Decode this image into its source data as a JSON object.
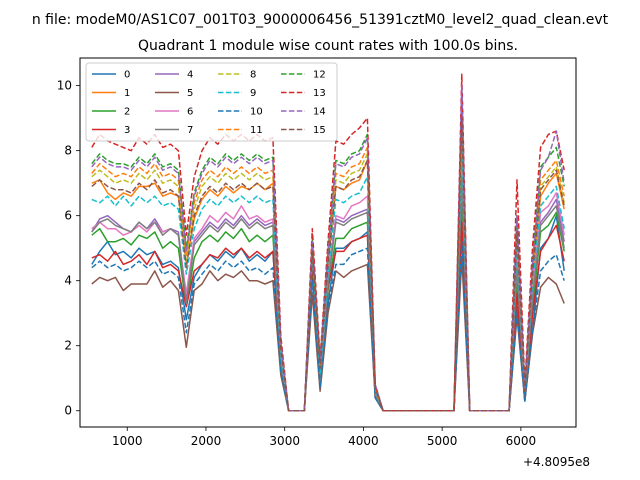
{
  "figure": {
    "suptitle": "n file: modeM0/AS1C07_001T03_9000006456_51391cztM0_level2_quad_clean.evt"
  },
  "chart_data": {
    "type": "line",
    "title": "Quadrant 1 module wise count rates with 100.0s bins.",
    "xlabel": "",
    "ylabel": "",
    "x_offset_label": "+4.8095e8",
    "xlim": [
      400,
      6700
    ],
    "ylim": [
      -0.5,
      10.85
    ],
    "xticks": [
      1000,
      2000,
      3000,
      4000,
      5000,
      6000
    ],
    "yticks": [
      0,
      2,
      4,
      6,
      8,
      10
    ],
    "grid": false,
    "legend_placement": "top-left",
    "x": [
      550,
      650,
      750,
      850,
      950,
      1050,
      1150,
      1250,
      1350,
      1450,
      1550,
      1650,
      1750,
      1850,
      1950,
      2050,
      2150,
      2250,
      2350,
      2450,
      2550,
      2650,
      2750,
      2850,
      2950,
      3050,
      3150,
      3250,
      3350,
      3450,
      3550,
      3650,
      3750,
      3850,
      3950,
      4050,
      4150,
      4250,
      4350,
      4450,
      4550,
      4650,
      4750,
      4850,
      4950,
      5050,
      5150,
      5250,
      5350,
      5450,
      5550,
      5650,
      5750,
      5850,
      5950,
      6050,
      6150,
      6250,
      6350,
      6450,
      6550
    ],
    "series": [
      {
        "name": "0",
        "color": "#1f77b4",
        "dash": "solid",
        "values": [
          4.5,
          4.9,
          5.2,
          4.8,
          4.9,
          4.7,
          5.0,
          4.8,
          4.9,
          4.5,
          4.6,
          4.4,
          2.8,
          4.1,
          4.5,
          4.8,
          4.6,
          4.9,
          4.7,
          5.0,
          4.6,
          4.8,
          4.6,
          4.9,
          1.3,
          0,
          0,
          0,
          4.3,
          0.7,
          3.3,
          5.0,
          5.0,
          5.2,
          5.3,
          5.5,
          0.4,
          0,
          0,
          0,
          0,
          0,
          0,
          0,
          0,
          0,
          0,
          5.6,
          0,
          0,
          0,
          0,
          0,
          0,
          3.2,
          0.3,
          2.5,
          5.0,
          5.3,
          6.0,
          4.3
        ]
      },
      {
        "name": "1",
        "color": "#ff7f0e",
        "dash": "solid",
        "values": [
          7.0,
          7.1,
          6.7,
          6.5,
          6.7,
          6.6,
          6.9,
          6.9,
          7.0,
          6.6,
          6.7,
          6.6,
          4.5,
          5.9,
          6.5,
          6.8,
          6.6,
          6.9,
          6.7,
          6.9,
          6.8,
          7.0,
          6.8,
          7.0,
          1.8,
          0,
          0,
          0,
          4.9,
          1.2,
          4.5,
          6.9,
          6.8,
          7.0,
          7.1,
          7.7,
          0.7,
          0,
          0,
          0,
          0,
          0,
          0,
          0,
          0,
          0,
          0,
          8.8,
          0,
          0,
          0,
          0,
          0,
          0,
          5.4,
          0.6,
          4.2,
          6.6,
          7.0,
          7.3,
          6.2
        ]
      },
      {
        "name": "2",
        "color": "#2ca02c",
        "dash": "solid",
        "values": [
          5.4,
          5.6,
          5.2,
          5.2,
          5.3,
          5.1,
          5.4,
          5.3,
          5.5,
          5.0,
          5.2,
          5.0,
          3.2,
          4.7,
          5.2,
          5.4,
          5.2,
          5.5,
          5.3,
          5.6,
          5.2,
          5.4,
          5.2,
          5.4,
          1.4,
          0,
          0,
          0,
          4.5,
          0.9,
          3.7,
          5.3,
          5.3,
          5.6,
          5.7,
          5.8,
          0.5,
          0,
          0,
          0,
          0,
          0,
          0,
          0,
          0,
          0,
          0,
          6.4,
          0,
          0,
          0,
          0,
          0,
          0,
          3.9,
          0.4,
          3.2,
          5.5,
          5.7,
          6.1,
          4.9
        ]
      },
      {
        "name": "3",
        "color": "#d62728",
        "dash": "solid",
        "values": [
          4.7,
          4.8,
          4.6,
          4.9,
          4.5,
          4.6,
          4.8,
          4.5,
          4.9,
          4.4,
          4.5,
          4.3,
          3.2,
          4.3,
          4.5,
          4.8,
          4.7,
          5.0,
          4.8,
          5.0,
          4.7,
          4.9,
          4.7,
          4.9,
          1.5,
          0,
          0,
          0,
          4.6,
          0.8,
          3.8,
          4.9,
          4.9,
          5.2,
          5.3,
          5.4,
          0.5,
          0,
          0,
          0,
          0,
          0,
          0,
          0,
          0,
          0,
          0,
          5.8,
          0,
          0,
          0,
          0,
          0,
          0,
          3.6,
          0.4,
          3.0,
          4.9,
          5.3,
          5.7,
          4.6
        ]
      },
      {
        "name": "4",
        "color": "#9467bd",
        "dash": "solid",
        "values": [
          5.5,
          5.9,
          6.0,
          5.8,
          5.6,
          5.5,
          5.8,
          5.6,
          5.9,
          5.5,
          5.6,
          5.5,
          3.4,
          5.2,
          5.5,
          5.8,
          5.6,
          5.9,
          5.7,
          6.0,
          5.7,
          5.9,
          5.7,
          5.8,
          1.5,
          0,
          0,
          0,
          5.0,
          1.0,
          4.0,
          5.9,
          5.8,
          6.0,
          6.1,
          6.2,
          0.6,
          0,
          0,
          0,
          0,
          0,
          0,
          0,
          0,
          0,
          0,
          7.5,
          0,
          0,
          0,
          0,
          0,
          0,
          4.5,
          0.5,
          3.6,
          5.8,
          6.1,
          6.5,
          5.2
        ]
      },
      {
        "name": "5",
        "color": "#8c564b",
        "dash": "solid",
        "values": [
          3.9,
          4.1,
          4.0,
          4.1,
          3.7,
          3.9,
          3.9,
          3.9,
          4.3,
          3.8,
          4.0,
          3.7,
          1.95,
          3.7,
          3.9,
          4.3,
          4.0,
          4.2,
          4.1,
          4.3,
          4.0,
          4.0,
          3.9,
          4.0,
          1.1,
          0,
          0,
          0,
          3.6,
          0.6,
          3.0,
          4.3,
          4.1,
          4.3,
          4.4,
          4.5,
          0.4,
          0,
          0,
          0,
          0,
          0,
          0,
          0,
          0,
          0,
          0,
          4.7,
          0,
          0,
          0,
          0,
          0,
          0,
          2.9,
          0.3,
          2.4,
          3.8,
          4.1,
          3.9,
          3.3
        ]
      },
      {
        "name": "6",
        "color": "#e377c2",
        "dash": "solid",
        "values": [
          5.6,
          5.8,
          5.6,
          5.6,
          5.4,
          5.5,
          5.7,
          5.5,
          5.8,
          5.5,
          5.6,
          5.4,
          3.6,
          5.3,
          5.6,
          6.0,
          5.8,
          6.1,
          5.9,
          6.3,
          5.9,
          6.0,
          5.8,
          5.9,
          1.6,
          0,
          0,
          0,
          5.1,
          1.0,
          4.1,
          6.0,
          5.9,
          6.3,
          6.4,
          6.6,
          0.6,
          0,
          0,
          0,
          0,
          0,
          0,
          0,
          0,
          0,
          0,
          7.8,
          0,
          0,
          0,
          0,
          0,
          0,
          4.7,
          0.5,
          3.8,
          6.1,
          6.3,
          6.7,
          5.4
        ]
      },
      {
        "name": "7",
        "color": "#7f7f7f",
        "dash": "solid",
        "values": [
          5.5,
          5.8,
          5.9,
          5.7,
          5.6,
          5.5,
          5.8,
          5.6,
          5.8,
          5.4,
          5.6,
          5.4,
          3.3,
          5.1,
          5.4,
          5.7,
          5.5,
          5.8,
          5.6,
          5.9,
          5.6,
          5.8,
          5.6,
          5.7,
          1.5,
          0,
          0,
          0,
          4.9,
          0.9,
          3.9,
          5.8,
          5.7,
          5.9,
          6.0,
          6.1,
          0.5,
          0,
          0,
          0,
          0,
          0,
          0,
          0,
          0,
          0,
          0,
          7.2,
          0,
          0,
          0,
          0,
          0,
          0,
          4.4,
          0.5,
          3.5,
          5.7,
          6.0,
          6.3,
          5.0
        ]
      },
      {
        "name": "8",
        "color": "#bcbd22",
        "dash": "dashed",
        "values": [
          7.2,
          7.4,
          7.2,
          7.0,
          7.1,
          7.0,
          7.3,
          7.1,
          7.4,
          7.0,
          7.1,
          6.9,
          4.6,
          6.2,
          6.9,
          7.2,
          7.0,
          7.3,
          7.1,
          7.3,
          7.1,
          7.3,
          7.1,
          7.2,
          1.9,
          0,
          0,
          0,
          5.0,
          1.3,
          4.6,
          7.1,
          7.0,
          7.3,
          7.4,
          7.9,
          0.7,
          0,
          0,
          0,
          0,
          0,
          0,
          0,
          0,
          0,
          0,
          9.1,
          0,
          0,
          0,
          0,
          0,
          0,
          5.6,
          0.6,
          4.4,
          6.9,
          7.2,
          7.5,
          6.4
        ]
      },
      {
        "name": "9",
        "color": "#17becf",
        "dash": "dashed",
        "values": [
          6.5,
          6.4,
          6.6,
          6.3,
          6.6,
          6.3,
          6.6,
          6.4,
          6.6,
          6.3,
          6.4,
          6.2,
          4.2,
          5.6,
          6.2,
          6.5,
          6.3,
          6.6,
          6.4,
          6.6,
          6.4,
          6.6,
          6.4,
          6.5,
          1.7,
          0,
          0,
          0,
          4.8,
          1.1,
          4.2,
          6.5,
          6.4,
          6.6,
          6.7,
          7.2,
          0.6,
          0,
          0,
          0,
          0,
          0,
          0,
          0,
          0,
          0,
          0,
          8.4,
          0,
          0,
          0,
          0,
          0,
          0,
          5.1,
          0.6,
          4.0,
          6.3,
          6.6,
          6.9,
          5.6
        ]
      },
      {
        "name": "10",
        "color": "#1f77b4",
        "dash": "dashed",
        "values": [
          4.4,
          4.6,
          4.4,
          4.5,
          4.3,
          4.4,
          4.6,
          4.4,
          4.6,
          4.2,
          4.3,
          4.1,
          2.4,
          3.9,
          4.2,
          4.5,
          4.3,
          4.6,
          4.4,
          4.6,
          4.3,
          4.4,
          4.2,
          4.4,
          1.2,
          0,
          0,
          0,
          4.0,
          0.7,
          3.2,
          4.5,
          4.5,
          4.8,
          4.9,
          5.0,
          0.4,
          0,
          0,
          0,
          0,
          0,
          0,
          0,
          0,
          0,
          0,
          5.2,
          0,
          0,
          0,
          0,
          0,
          0,
          3.0,
          0.3,
          2.5,
          4.3,
          4.6,
          4.8,
          4.0
        ]
      },
      {
        "name": "11",
        "color": "#ff7f0e",
        "dash": "dashed",
        "values": [
          7.3,
          7.6,
          7.4,
          7.2,
          7.3,
          7.2,
          7.5,
          7.3,
          7.6,
          7.2,
          7.3,
          7.1,
          4.8,
          6.4,
          7.1,
          7.4,
          7.2,
          7.5,
          7.3,
          7.5,
          7.3,
          7.5,
          7.3,
          7.4,
          2.0,
          0,
          0,
          0,
          5.1,
          1.4,
          4.7,
          7.3,
          7.2,
          7.5,
          7.6,
          8.1,
          0.7,
          0,
          0,
          0,
          0,
          0,
          0,
          0,
          0,
          0,
          0,
          9.4,
          0,
          0,
          0,
          0,
          0,
          0,
          5.8,
          0.7,
          4.5,
          7.1,
          7.4,
          7.7,
          6.6
        ]
      },
      {
        "name": "12",
        "color": "#2ca02c",
        "dash": "dashed",
        "values": [
          7.6,
          7.9,
          7.7,
          7.6,
          7.6,
          7.5,
          7.8,
          7.6,
          7.9,
          7.5,
          7.6,
          7.4,
          5.0,
          6.7,
          7.4,
          7.8,
          7.6,
          7.9,
          7.7,
          7.9,
          7.7,
          7.9,
          7.7,
          7.8,
          2.1,
          0,
          0,
          0,
          5.3,
          1.5,
          4.9,
          7.7,
          7.6,
          7.9,
          8.0,
          8.5,
          0.8,
          0,
          0,
          0,
          0,
          0,
          0,
          0,
          0,
          0,
          0,
          9.7,
          0,
          0,
          0,
          0,
          0,
          0,
          6.0,
          0.7,
          4.7,
          7.5,
          7.8,
          8.1,
          6.9
        ]
      },
      {
        "name": "13",
        "color": "#d62728",
        "dash": "dashed",
        "values": [
          8.1,
          8.5,
          8.3,
          8.2,
          8.1,
          8.0,
          8.4,
          8.2,
          8.5,
          8.1,
          8.2,
          8.0,
          5.4,
          7.2,
          8.0,
          8.4,
          8.2,
          8.5,
          8.3,
          8.5,
          8.3,
          8.5,
          8.3,
          8.4,
          2.3,
          0,
          0,
          0,
          5.6,
          1.6,
          5.2,
          8.3,
          8.2,
          8.5,
          8.7,
          9.0,
          0.8,
          0,
          0,
          0,
          0,
          0,
          0,
          0,
          0,
          0,
          0,
          10.35,
          0,
          0,
          0,
          0,
          0,
          0,
          7.1,
          0.8,
          5.1,
          8.1,
          8.5,
          8.6,
          7.4
        ]
      },
      {
        "name": "14",
        "color": "#9467bd",
        "dash": "dashed",
        "values": [
          7.5,
          7.8,
          7.6,
          7.5,
          7.5,
          7.4,
          7.7,
          7.5,
          7.8,
          7.4,
          7.5,
          7.3,
          4.9,
          6.6,
          7.3,
          7.7,
          7.5,
          7.8,
          7.6,
          7.8,
          7.6,
          7.8,
          7.6,
          7.7,
          2.1,
          0,
          0,
          0,
          5.2,
          1.5,
          4.8,
          7.6,
          7.5,
          7.8,
          7.9,
          8.4,
          0.8,
          0,
          0,
          0,
          0,
          0,
          0,
          0,
          0,
          0,
          0,
          10.0,
          0,
          0,
          0,
          0,
          0,
          0,
          6.0,
          0.7,
          4.6,
          7.4,
          7.8,
          8.6,
          7.0
        ]
      },
      {
        "name": "15",
        "color": "#8c564b",
        "dash": "dashed",
        "values": [
          6.9,
          7.1,
          6.9,
          6.8,
          6.8,
          6.7,
          7.0,
          6.8,
          7.1,
          6.7,
          6.8,
          6.6,
          4.4,
          6.0,
          6.6,
          6.9,
          6.7,
          7.0,
          6.8,
          7.0,
          6.8,
          7.0,
          6.8,
          6.9,
          1.9,
          0,
          0,
          0,
          4.9,
          1.3,
          4.5,
          6.9,
          6.8,
          7.1,
          7.2,
          7.7,
          0.7,
          0,
          0,
          0,
          0,
          0,
          0,
          0,
          0,
          0,
          0,
          9.0,
          0,
          0,
          0,
          0,
          0,
          0,
          5.5,
          0.6,
          4.3,
          6.8,
          7.1,
          7.4,
          6.3
        ]
      }
    ]
  }
}
